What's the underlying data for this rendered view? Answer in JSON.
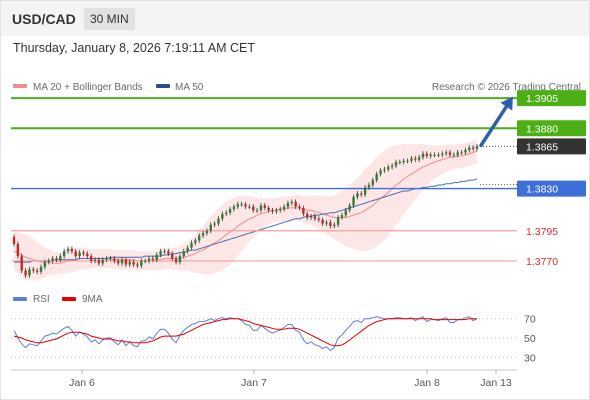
{
  "header": {
    "pair": "USD/CAD",
    "timeframe": "30 MIN"
  },
  "datetime": "Thursday, January 8, 2026 7:19:11 AM CET",
  "legend": {
    "ma20": "MA 20 + Bollinger Bands",
    "ma50": "MA 50",
    "credit": "Research © 2026 Trading Central",
    "rsi": "RSI",
    "rsi_ma": "9MA"
  },
  "colors": {
    "up_candle": "#2e7d32",
    "down_candle": "#c62828",
    "bollinger_fill": "#fde2e2",
    "ma20": "#f08c8c",
    "ma50": "#4a6cb3",
    "resistance": "#4caf15",
    "pivot": "#3d6fd6",
    "support": "#f4a0a0",
    "current": "#333333",
    "arrow": "#2b5fa8",
    "rsi_line": "#5b7fd6",
    "rsi_ma_line": "#e60000"
  },
  "chart_data": [
    {
      "type": "candlestick",
      "title": "USD/CAD",
      "timeframe": "30 MIN",
      "x_ticks": [
        "Jan 6",
        "Jan 7",
        "Jan 8",
        "Jan 13"
      ],
      "ylim": [
        1.3755,
        1.3935
      ],
      "levels": [
        {
          "label": "1.3905",
          "value": 1.3905,
          "kind": "resistance"
        },
        {
          "label": "1.3880",
          "value": 1.388,
          "kind": "resistance"
        },
        {
          "label": "1.3865",
          "value": 1.3865,
          "kind": "current"
        },
        {
          "label": "1.3830",
          "value": 1.383,
          "kind": "pivot"
        },
        {
          "label": "1.3795",
          "value": 1.3795,
          "kind": "support"
        },
        {
          "label": "1.3770",
          "value": 1.377,
          "kind": "support"
        }
      ],
      "close": [
        1.3784,
        1.3774,
        1.3762,
        1.3758,
        1.3763,
        1.3762,
        1.3761,
        1.3765,
        1.3769,
        1.377,
        1.3772,
        1.3771,
        1.3774,
        1.3778,
        1.378,
        1.3778,
        1.3774,
        1.3777,
        1.3776,
        1.3774,
        1.377,
        1.3771,
        1.3768,
        1.3771,
        1.3772,
        1.3772,
        1.377,
        1.3768,
        1.3771,
        1.3767,
        1.3769,
        1.3767,
        1.3766,
        1.377,
        1.377,
        1.3772,
        1.3771,
        1.3775,
        1.3778,
        1.3778,
        1.3776,
        1.3772,
        1.3769,
        1.3774,
        1.3778,
        1.3781,
        1.3785,
        1.3787,
        1.3791,
        1.3793,
        1.3795,
        1.38,
        1.3801,
        1.3805,
        1.3809,
        1.381,
        1.3813,
        1.3815,
        1.3817,
        1.3817,
        1.3815,
        1.3815,
        1.3812,
        1.3812,
        1.3816,
        1.3814,
        1.3812,
        1.3811,
        1.3812,
        1.3813,
        1.3815,
        1.3818,
        1.3819,
        1.3815,
        1.3814,
        1.3809,
        1.3806,
        1.3807,
        1.3805,
        1.3804,
        1.3801,
        1.3802,
        1.3799,
        1.38,
        1.3806,
        1.3808,
        1.3812,
        1.3816,
        1.3823,
        1.3826,
        1.3825,
        1.3831,
        1.3833,
        1.3837,
        1.3842,
        1.3845,
        1.3846,
        1.3848,
        1.3849,
        1.3852,
        1.3852,
        1.3853,
        1.3853,
        1.3855,
        1.3854,
        1.3856,
        1.3859,
        1.3857,
        1.3858,
        1.3858,
        1.3858,
        1.3859,
        1.386,
        1.3858,
        1.3858,
        1.386,
        1.386,
        1.3862,
        1.3864,
        1.3863,
        1.3865
      ],
      "open": [
        1.379,
        1.3784,
        1.3774,
        1.3762,
        1.3758,
        1.3763,
        1.3762,
        1.3761,
        1.3765,
        1.3769,
        1.377,
        1.3772,
        1.3771,
        1.3774,
        1.3778,
        1.378,
        1.3778,
        1.3774,
        1.3777,
        1.3776,
        1.3774,
        1.377,
        1.3771,
        1.3768,
        1.3771,
        1.3772,
        1.3772,
        1.377,
        1.3768,
        1.3771,
        1.3767,
        1.3769,
        1.3767,
        1.3766,
        1.377,
        1.377,
        1.3772,
        1.3771,
        1.3775,
        1.3778,
        1.3778,
        1.3776,
        1.3772,
        1.3769,
        1.3774,
        1.3778,
        1.3781,
        1.3785,
        1.3787,
        1.3791,
        1.3793,
        1.3795,
        1.38,
        1.3801,
        1.3805,
        1.3809,
        1.381,
        1.3813,
        1.3815,
        1.3817,
        1.3817,
        1.3815,
        1.3815,
        1.3812,
        1.3812,
        1.3816,
        1.3814,
        1.3812,
        1.3811,
        1.3812,
        1.3813,
        1.3815,
        1.3818,
        1.3819,
        1.3815,
        1.3814,
        1.3809,
        1.3806,
        1.3807,
        1.3805,
        1.3804,
        1.3801,
        1.3802,
        1.3799,
        1.38,
        1.3806,
        1.3808,
        1.3812,
        1.3816,
        1.3823,
        1.3826,
        1.3825,
        1.3831,
        1.3833,
        1.3837,
        1.3842,
        1.3845,
        1.3846,
        1.3848,
        1.3849,
        1.3852,
        1.3852,
        1.3853,
        1.3853,
        1.3855,
        1.3854,
        1.3856,
        1.3859,
        1.3857,
        1.3858,
        1.3858,
        1.3858,
        1.3859,
        1.386,
        1.3858,
        1.3858,
        1.386,
        1.386,
        1.3862,
        1.3864,
        1.3863
      ],
      "ma20": [
        1.3778,
        1.3777,
        1.3775,
        1.3773,
        1.3772,
        1.3771,
        1.377,
        1.3769,
        1.3769,
        1.3769,
        1.3768,
        1.3768,
        1.3768,
        1.3769,
        1.377,
        1.3771,
        1.3771,
        1.3772,
        1.3772,
        1.3772,
        1.3772,
        1.3772,
        1.3772,
        1.3772,
        1.3772,
        1.3772,
        1.3771,
        1.3771,
        1.3771,
        1.3771,
        1.3771,
        1.3771,
        1.377,
        1.377,
        1.377,
        1.377,
        1.377,
        1.3771,
        1.3771,
        1.3772,
        1.3772,
        1.3772,
        1.3772,
        1.3772,
        1.3773,
        1.3774,
        1.3775,
        1.3776,
        1.3778,
        1.3779,
        1.3781,
        1.3783,
        1.3785,
        1.3787,
        1.3789,
        1.3792,
        1.3794,
        1.3796,
        1.3799,
        1.3801,
        1.3803,
        1.3805,
        1.3806,
        1.3808,
        1.3809,
        1.381,
        1.3811,
        1.3812,
        1.3812,
        1.3813,
        1.3813,
        1.3814,
        1.3814,
        1.3814,
        1.3814,
        1.3813,
        1.3812,
        1.3812,
        1.3811,
        1.381,
        1.3809,
        1.3808,
        1.3807,
        1.3806,
        1.3806,
        1.3806,
        1.3806,
        1.3807,
        1.3808,
        1.3809,
        1.381,
        1.3812,
        1.3814,
        1.3816,
        1.3819,
        1.3822,
        1.3824,
        1.3827,
        1.383,
        1.3833,
        1.3835,
        1.3838,
        1.384,
        1.3842,
        1.3844,
        1.3846,
        1.3848,
        1.3849,
        1.3851,
        1.3852,
        1.3853,
        1.3854,
        1.3855,
        1.3856,
        1.3856,
        1.3857,
        1.3857,
        1.3858,
        1.3859,
        1.386,
        1.3861
      ],
      "ma50": [
        1.3769,
        1.3769,
        1.3769,
        1.3769,
        1.3769,
        1.377,
        1.377,
        1.377,
        1.377,
        1.377,
        1.377,
        1.3771,
        1.3771,
        1.3771,
        1.3771,
        1.3771,
        1.3771,
        1.3772,
        1.3772,
        1.3772,
        1.3772,
        1.3772,
        1.3772,
        1.3772,
        1.3772,
        1.3773,
        1.3773,
        1.3773,
        1.3773,
        1.3773,
        1.3773,
        1.3773,
        1.3773,
        1.3773,
        1.3774,
        1.3774,
        1.3774,
        1.3774,
        1.3774,
        1.3775,
        1.3775,
        1.3776,
        1.3776,
        1.3777,
        1.3777,
        1.3778,
        1.3779,
        1.3779,
        1.378,
        1.3781,
        1.3782,
        1.3783,
        1.3784,
        1.3785,
        1.3786,
        1.3787,
        1.3788,
        1.3789,
        1.379,
        1.3791,
        1.3792,
        1.3793,
        1.3794,
        1.3795,
        1.3796,
        1.3797,
        1.3798,
        1.3799,
        1.38,
        1.3801,
        1.3802,
        1.3803,
        1.3804,
        1.3805,
        1.3805,
        1.3806,
        1.3807,
        1.3807,
        1.3808,
        1.3808,
        1.3809,
        1.3809,
        1.381,
        1.381,
        1.3811,
        1.3812,
        1.3813,
        1.3814,
        1.3815,
        1.3816,
        1.3817,
        1.3818,
        1.3819,
        1.382,
        1.3821,
        1.3822,
        1.3823,
        1.3824,
        1.3825,
        1.3826,
        1.3827,
        1.3828,
        1.3828,
        1.3829,
        1.383,
        1.383,
        1.3831,
        1.3831,
        1.3832,
        1.3832,
        1.3833,
        1.3833,
        1.3834,
        1.3834,
        1.3835,
        1.3835,
        1.3836,
        1.3836,
        1.3837,
        1.3837,
        1.3838
      ],
      "bb_halfwidth": [
        0.0016,
        0.0017,
        0.0018,
        0.0019,
        0.0018,
        0.0017,
        0.0016,
        0.0014,
        0.0012,
        0.0011,
        0.001,
        0.0009,
        0.0009,
        0.0009,
        0.001,
        0.001,
        0.001,
        0.0009,
        0.0009,
        0.0009,
        0.0008,
        0.0008,
        0.0008,
        0.0008,
        0.0008,
        0.0008,
        0.0008,
        0.0008,
        0.0008,
        0.0008,
        0.0008,
        0.0008,
        0.0008,
        0.0008,
        0.0008,
        0.0008,
        0.0008,
        0.0008,
        0.0009,
        0.0009,
        0.0009,
        0.0009,
        0.0009,
        0.001,
        0.0011,
        0.0012,
        0.0014,
        0.0016,
        0.0018,
        0.002,
        0.0022,
        0.0024,
        0.0025,
        0.0026,
        0.0027,
        0.0027,
        0.0027,
        0.0026,
        0.0025,
        0.0023,
        0.0021,
        0.0019,
        0.0017,
        0.0015,
        0.0013,
        0.0012,
        0.0011,
        0.001,
        0.001,
        0.001,
        0.001,
        0.001,
        0.001,
        0.001,
        0.0011,
        0.0011,
        0.0012,
        0.0012,
        0.0013,
        0.0014,
        0.0015,
        0.0016,
        0.0017,
        0.0018,
        0.002,
        0.0022,
        0.0024,
        0.0026,
        0.0028,
        0.003,
        0.0032,
        0.0034,
        0.0035,
        0.0036,
        0.0037,
        0.0037,
        0.0037,
        0.0036,
        0.0035,
        0.0033,
        0.0031,
        0.0029,
        0.0027,
        0.0025,
        0.0023,
        0.0021,
        0.0019,
        0.0017,
        0.0015,
        0.0014,
        0.0013,
        0.0012,
        0.0011,
        0.0011,
        0.001,
        0.001,
        0.001,
        0.001,
        0.001,
        0.001,
        0.001
      ]
    },
    {
      "type": "line",
      "title": "RSI",
      "ylim": [
        20,
        80
      ],
      "y_ticks": [
        70,
        50,
        30
      ],
      "series": [
        {
          "name": "RSI",
          "values": [
            58,
            50,
            44,
            40,
            44,
            43,
            42,
            47,
            52,
            53,
            55,
            54,
            57,
            60,
            62,
            58,
            52,
            56,
            54,
            51,
            46,
            48,
            44,
            48,
            50,
            50,
            46,
            43,
            48,
            42,
            46,
            42,
            41,
            47,
            47,
            51,
            49,
            55,
            59,
            59,
            55,
            49,
            45,
            53,
            58,
            61,
            64,
            65,
            67,
            67,
            68,
            70,
            68,
            70,
            71,
            70,
            71,
            70,
            70,
            68,
            64,
            63,
            58,
            58,
            63,
            60,
            57,
            55,
            57,
            58,
            61,
            64,
            64,
            58,
            56,
            48,
            44,
            46,
            43,
            42,
            39,
            41,
            37,
            40,
            50,
            53,
            58,
            62,
            67,
            68,
            66,
            70,
            70,
            71,
            72,
            71,
            70,
            70,
            70,
            71,
            71,
            70,
            70,
            71,
            68,
            70,
            72,
            67,
            69,
            69,
            68,
            70,
            71,
            66,
            66,
            69,
            69,
            71,
            72,
            68,
            70
          ]
        },
        {
          "name": "9MA",
          "values": [
            52,
            51,
            50,
            48,
            47,
            46,
            45,
            45,
            46,
            47,
            48,
            49,
            51,
            53,
            55,
            56,
            56,
            56,
            55,
            54,
            52,
            51,
            50,
            49,
            49,
            49,
            48,
            47,
            47,
            46,
            46,
            45,
            45,
            45,
            45,
            46,
            47,
            49,
            51,
            52,
            52,
            52,
            52,
            53,
            54,
            56,
            58,
            60,
            62,
            64,
            65,
            66,
            67,
            68,
            69,
            69,
            70,
            70,
            70,
            69,
            68,
            67,
            65,
            64,
            63,
            62,
            61,
            60,
            59,
            59,
            59,
            60,
            60,
            60,
            59,
            57,
            55,
            53,
            51,
            49,
            47,
            45,
            43,
            42,
            42,
            43,
            45,
            48,
            51,
            54,
            57,
            60,
            63,
            65,
            67,
            68,
            69,
            70,
            70,
            70,
            70,
            70,
            70,
            70,
            70,
            70,
            70,
            70,
            70,
            69,
            69,
            69,
            69,
            69,
            69,
            69,
            69,
            69,
            70,
            70,
            70
          ]
        }
      ]
    }
  ]
}
